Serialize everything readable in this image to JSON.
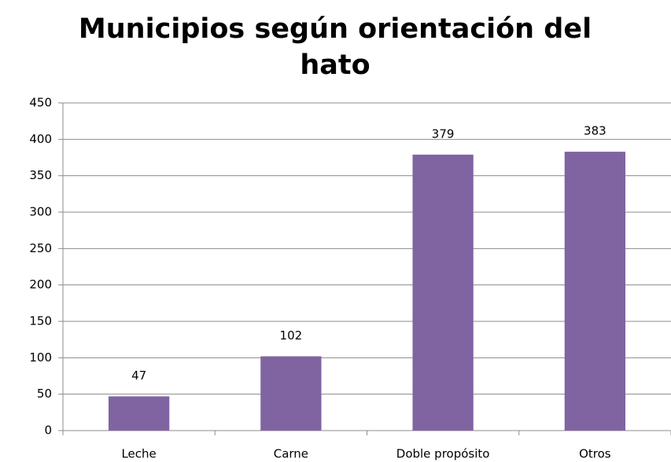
{
  "chart_data": {
    "type": "bar",
    "title": "Municipios según orientación del hato",
    "categories": [
      "Leche",
      "Carne",
      "Doble propósito",
      "Otros"
    ],
    "values": [
      47,
      102,
      379,
      383
    ],
    "color": "#8064a2",
    "ylim": [
      0,
      450
    ],
    "yticks": [
      0,
      50,
      100,
      150,
      200,
      250,
      300,
      350,
      400,
      450
    ],
    "grid": true,
    "data_labels": true
  }
}
